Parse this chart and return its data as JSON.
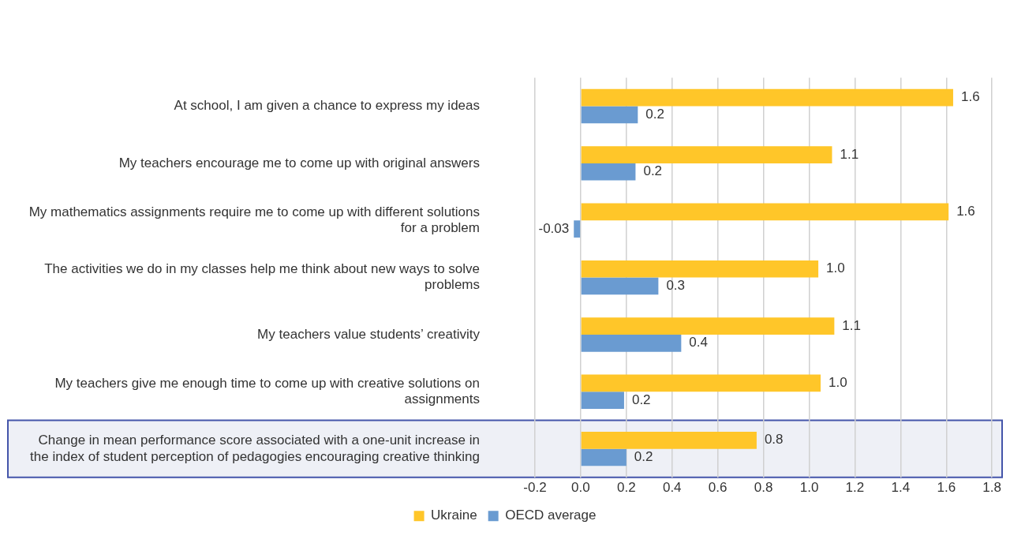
{
  "chart_data": {
    "type": "bar",
    "orientation": "horizontal",
    "categories": [
      "At school, I am given a chance to express my ideas",
      "My teachers encourage me to come up with original answers",
      "My mathematics assignments require me to come up with different solutions for a problem",
      "The activities we do in my classes help me think about new ways to solve problems",
      "My teachers value students’ creativity",
      "My teachers give me enough time to come up with creative solutions on assignments",
      "Change in mean performance score associated with a one-unit increase in the index of student perception of pedagogies encouraging creative thinking"
    ],
    "series": [
      {
        "name": "Ukraine",
        "color": "#ffc629",
        "values": [
          1.63,
          1.1,
          1.61,
          1.04,
          1.11,
          1.05,
          0.77
        ],
        "value_labels": [
          "1.6",
          "1.1",
          "1.6",
          "1.0",
          "1.1",
          "1.0",
          "0.8"
        ]
      },
      {
        "name": "OECD average",
        "color": "#6a9bd1",
        "values": [
          0.25,
          0.24,
          -0.03,
          0.34,
          0.44,
          0.19,
          0.2
        ],
        "value_labels": [
          "0.2",
          "0.2",
          "-0.03",
          "0.3",
          "0.4",
          "0.2",
          "0.2"
        ]
      }
    ],
    "xlim": [
      -0.2,
      1.8
    ],
    "xticks": [
      {
        "value": -0.2,
        "label": "-0.2"
      },
      {
        "value": 0,
        "label": "0.0"
      },
      {
        "value": 0.2,
        "label": "0.2"
      },
      {
        "value": 0.4,
        "label": "0.4"
      },
      {
        "value": 0.6,
        "label": "0.6"
      },
      {
        "value": 0.8,
        "label": "0.8"
      },
      {
        "value": 1,
        "label": "1.0"
      },
      {
        "value": 1.2,
        "label": "1.2"
      },
      {
        "value": 1.4,
        "label": "1.4"
      },
      {
        "value": 1.6,
        "label": "1.6"
      },
      {
        "value": 1.8,
        "label": "1.8"
      }
    ],
    "bands": [
      {
        "axis": "y",
        "from": "Change in mean performance score associated with a one-unit increase in the index of student perception of pedagogies encouraging creative thinking",
        "to": "Change in mean performance score associated with a one-unit increase in the index of student perception of pedagogies encouraging creative thinking",
        "color": "#eef0f6"
      }
    ],
    "grid": "x",
    "legend": "bottom"
  }
}
